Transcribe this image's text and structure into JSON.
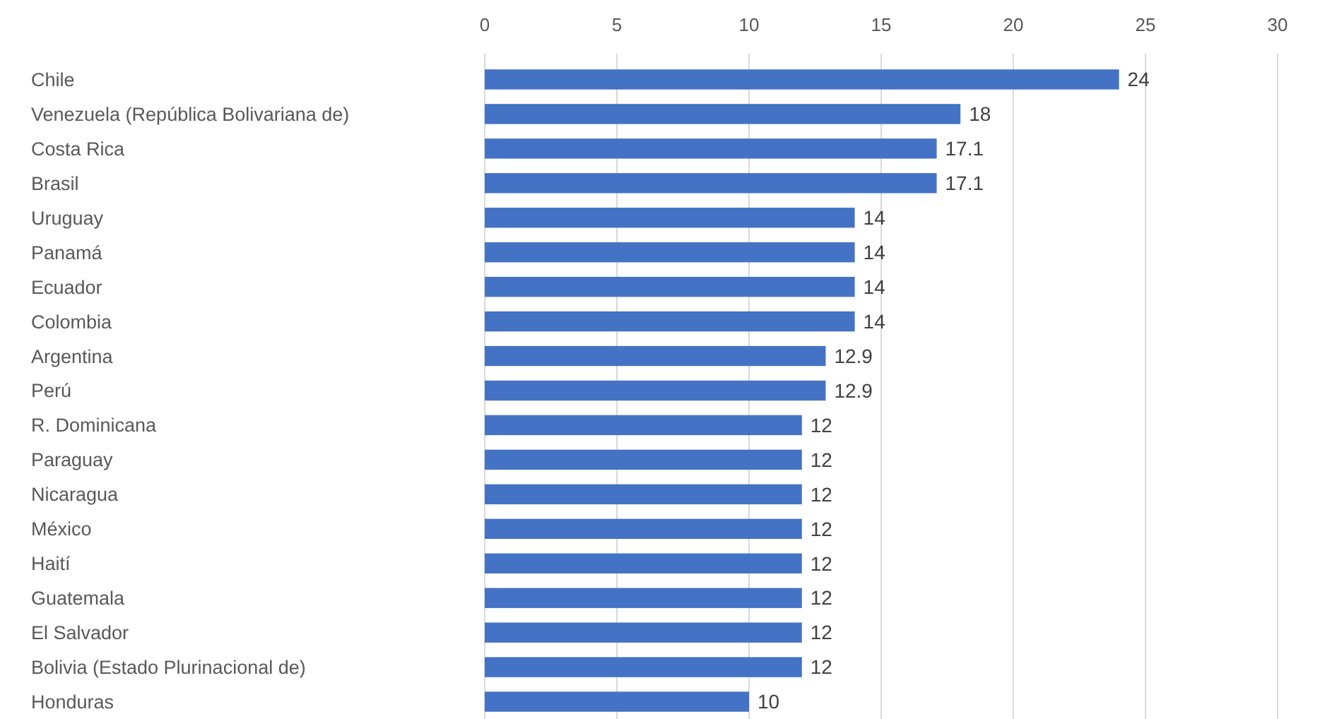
{
  "chart_data": {
    "type": "bar",
    "orientation": "horizontal",
    "categories": [
      "Chile",
      "Venezuela (República Bolivariana de)",
      "Costa Rica",
      "Brasil",
      "Uruguay",
      "Panamá",
      "Ecuador",
      "Colombia",
      "Argentina",
      "Perú",
      "R. Dominicana",
      "Paraguay",
      "Nicaragua",
      "México",
      "Haití",
      "Guatemala",
      "El Salvador",
      "Bolivia (Estado Plurinacional de)",
      "Honduras"
    ],
    "values": [
      24,
      18,
      17.1,
      17.1,
      14,
      14,
      14,
      14,
      12.9,
      12.9,
      12,
      12,
      12,
      12,
      12,
      12,
      12,
      12,
      10
    ],
    "color": "#4472c4",
    "xlim": [
      0,
      30
    ],
    "xticks": [
      0,
      5,
      10,
      15,
      20,
      25,
      30
    ],
    "grid": "x",
    "data_labels": true
  }
}
